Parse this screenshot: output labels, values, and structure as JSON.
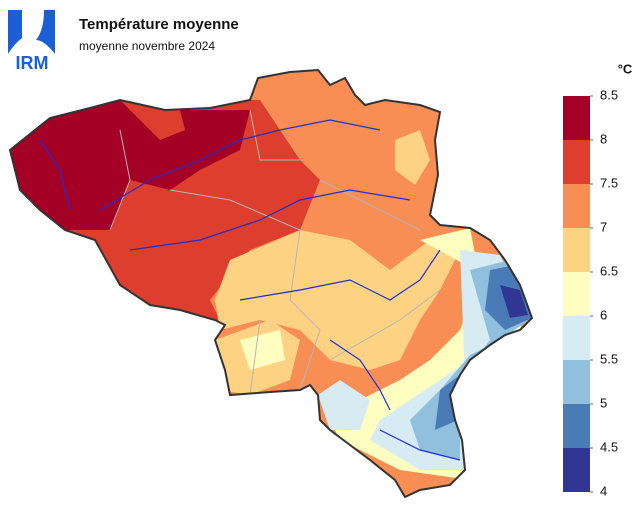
{
  "header": {
    "logo": "IRM",
    "title": "Température moyenne",
    "subtitle": "moyenne novembre 2024"
  },
  "legend": {
    "unit": "°C",
    "ticks": [
      4,
      4.5,
      5,
      5.5,
      6,
      6.5,
      7,
      7.5,
      8,
      8.5
    ],
    "colors": [
      "#313695",
      "#4a7bb7",
      "#91c0de",
      "#d6ebf2",
      "#fefec0",
      "#fed283",
      "#f88e54",
      "#dd3e2e",
      "#a50026"
    ]
  }
}
